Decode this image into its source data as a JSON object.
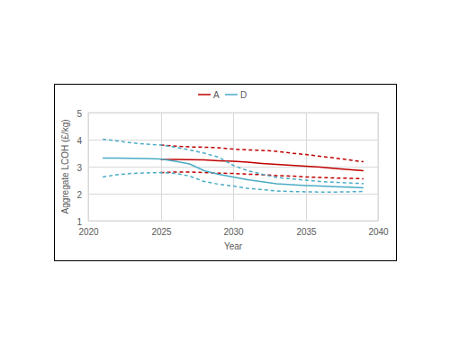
{
  "chart_data": {
    "type": "line",
    "x_label": "Year",
    "y_label": "Aggregate LCOH (£/kg)",
    "x": [
      2021,
      2022,
      2023,
      2024,
      2025,
      2026,
      2027,
      2028,
      2029,
      2030,
      2031,
      2032,
      2033,
      2034,
      2035,
      2036,
      2037,
      2038,
      2039
    ],
    "series": [
      {
        "name": "A",
        "color": "#c00000",
        "line_style": "solid",
        "values": [
          null,
          null,
          null,
          null,
          3.27,
          3.27,
          3.26,
          3.25,
          3.22,
          3.2,
          3.17,
          3.12,
          3.08,
          3.05,
          3.02,
          2.98,
          2.93,
          2.89,
          2.85
        ]
      },
      {
        "color": "#c00000",
        "line_style": "dashed",
        "values": [
          null,
          null,
          null,
          null,
          3.8,
          3.76,
          3.73,
          3.72,
          3.7,
          3.65,
          3.62,
          3.6,
          3.57,
          3.5,
          3.45,
          3.38,
          3.32,
          3.25,
          3.18
        ]
      },
      {
        "color": "#c00000",
        "line_style": "dashed",
        "values": [
          null,
          null,
          null,
          null,
          2.78,
          2.8,
          2.8,
          2.78,
          2.76,
          2.75,
          2.72,
          2.7,
          2.67,
          2.65,
          2.62,
          2.6,
          2.58,
          2.57,
          2.55
        ]
      },
      {
        "name": "D",
        "color": "#4bacc6",
        "line_style": "solid",
        "values": [
          3.32,
          3.32,
          3.31,
          3.3,
          3.28,
          3.2,
          3.1,
          2.85,
          2.72,
          2.62,
          2.52,
          2.44,
          2.37,
          2.33,
          2.3,
          2.28,
          2.26,
          2.24,
          2.22
        ]
      },
      {
        "color": "#4bacc6",
        "line_style": "dashed",
        "values": [
          4.02,
          3.95,
          3.88,
          3.83,
          3.8,
          3.72,
          3.62,
          3.5,
          3.35,
          3.05,
          2.85,
          2.72,
          2.6,
          2.55,
          2.5,
          2.45,
          2.42,
          2.4,
          2.37
        ]
      },
      {
        "color": "#4bacc6",
        "line_style": "dashed",
        "values": [
          2.62,
          2.7,
          2.75,
          2.77,
          2.78,
          2.75,
          2.65,
          2.45,
          2.35,
          2.28,
          2.2,
          2.15,
          2.1,
          2.08,
          2.07,
          2.06,
          2.06,
          2.07,
          2.08
        ]
      }
    ],
    "xlim": [
      2020,
      2040
    ],
    "xticks": [
      2020,
      2025,
      2030,
      2035,
      2040
    ],
    "ylim": [
      1,
      5
    ],
    "yticks": [
      1,
      2,
      3,
      4,
      5
    ],
    "grid": true,
    "legend": "top"
  }
}
